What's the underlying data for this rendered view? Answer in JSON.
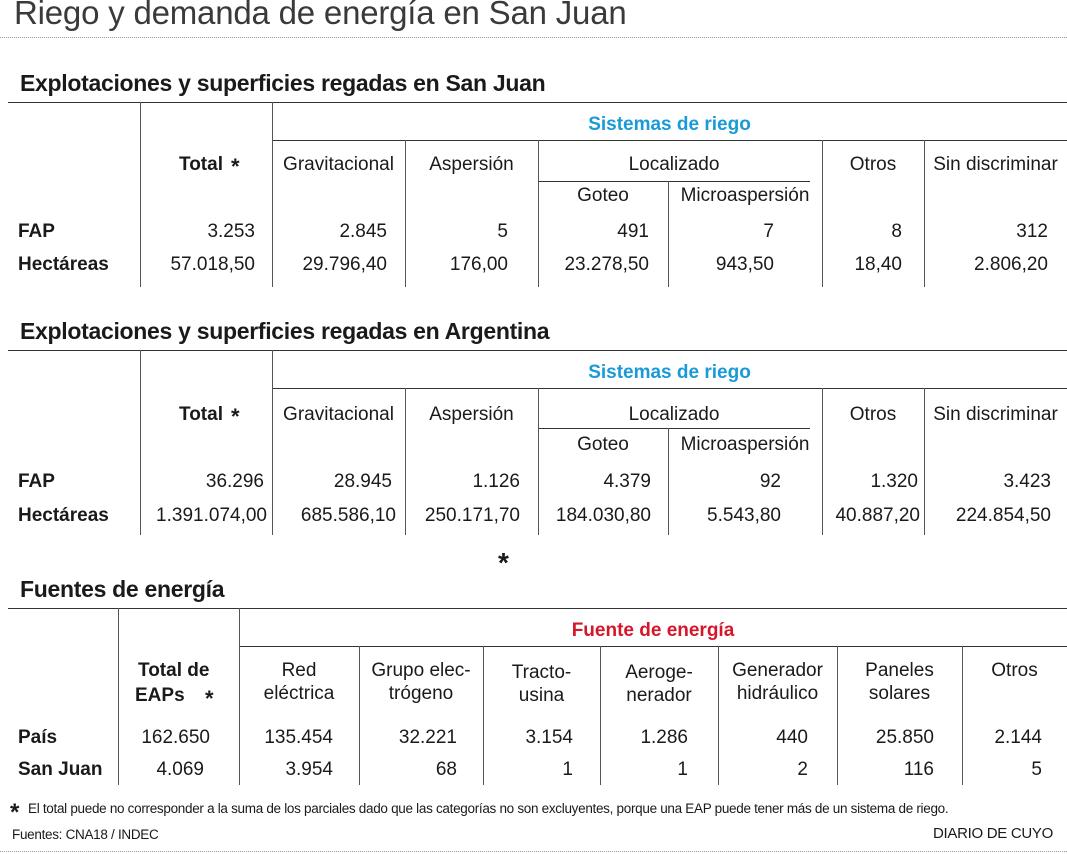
{
  "page": {
    "title": "Riego y demanda de energía en San Juan",
    "star": "*",
    "footnote": "El total puede no corresponder a la suma de los parciales dado que las categorías no son excluyentes, porque una EAP puede tener más de un sistema de riego.",
    "sources": "Fuentes: CNA18 / INDEC",
    "credit": "DIARIO DE CUYO"
  },
  "table1": {
    "title": "Explotaciones y superficies regadas en San Juan",
    "group_header": "Sistemas de riego",
    "headers": {
      "total": "Total",
      "gravitacional": "Gravitacional",
      "aspersion": "Aspersión",
      "localizado": "Localizado",
      "goteo": "Goteo",
      "microaspersion": "Microaspersión",
      "otros": "Otros",
      "sin_discriminar": "Sin discriminar"
    },
    "rows": [
      {
        "label": "FAP",
        "values": [
          "3.253",
          "2.845",
          "5",
          "491",
          "7",
          "8",
          "312"
        ]
      },
      {
        "label": "Hectáreas",
        "values": [
          "57.018,50",
          "29.796,40",
          "176,00",
          "23.278,50",
          "943,50",
          "18,40",
          "2.806,20"
        ]
      }
    ]
  },
  "table2": {
    "title": "Explotaciones y superficies regadas en Argentina",
    "group_header": "Sistemas de riego",
    "headers": {
      "total": "Total",
      "gravitacional": "Gravitacional",
      "aspersion": "Aspersión",
      "localizado": "Localizado",
      "goteo": "Goteo",
      "microaspersion": "Microaspersión",
      "otros": "Otros",
      "sin_discriminar": "Sin discriminar"
    },
    "rows": [
      {
        "label": "FAP",
        "values": [
          "36.296",
          "28.945",
          "1.126",
          "4.379",
          "92",
          "1.320",
          "3.423"
        ]
      },
      {
        "label": "Hectáreas",
        "values": [
          "1.391.074,00",
          "685.586,10",
          "250.171,70",
          "184.030,80",
          "5.543,80",
          "40.887,20",
          "224.854,50"
        ]
      }
    ]
  },
  "table3": {
    "title": "Fuentes de energía",
    "group_header": "Fuente de energía",
    "headers": {
      "total_l1": "Total de",
      "total_l2": "EAPs",
      "red_l1": "Red",
      "red_l2": "eléctrica",
      "grupo_l1": "Grupo elec-",
      "grupo_l2": "trógeno",
      "tracto_l1": "Tracto-",
      "tracto_l2": "usina",
      "aero_l1": "Aeroge-",
      "aero_l2": "nerador",
      "gen_l1": "Generador",
      "gen_l2": "hidráulico",
      "pan_l1": "Paneles",
      "pan_l2": "solares",
      "otros": "Otros"
    },
    "rows": [
      {
        "label": "País",
        "values": [
          "162.650",
          "135.454",
          "32.221",
          "3.154",
          "1.286",
          "440",
          "25.850",
          "2.144"
        ]
      },
      {
        "label": "San Juan",
        "values": [
          "4.069",
          "3.954",
          "68",
          "1",
          "1",
          "2",
          "116",
          "5"
        ]
      }
    ]
  }
}
